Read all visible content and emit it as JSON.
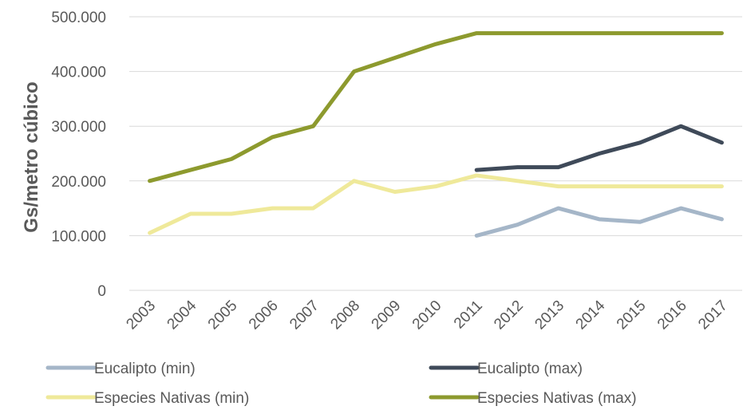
{
  "chart_data": {
    "type": "line",
    "title": "",
    "xlabel": "",
    "ylabel": "Gs/metro cúbico",
    "x": [
      "2003",
      "2004",
      "2005",
      "2006",
      "2007",
      "2008",
      "2009",
      "2010",
      "2011",
      "2012",
      "2013",
      "2014",
      "2015",
      "2016",
      "2017"
    ],
    "ylim": [
      0,
      500000
    ],
    "yticks": [
      0,
      100000,
      200000,
      300000,
      400000,
      500000
    ],
    "ytick_labels": [
      "0",
      "100.000",
      "200.000",
      "300.000",
      "400.000",
      "500.000"
    ],
    "grid": true,
    "legend_position": "bottom",
    "series": [
      {
        "name": "Eucalipto (min)",
        "color": "#a5b6c8",
        "values": [
          null,
          null,
          null,
          null,
          null,
          null,
          null,
          null,
          100000,
          120000,
          150000,
          130000,
          125000,
          150000,
          130000
        ]
      },
      {
        "name": "Eucalipto (max)",
        "color": "#3f4a59",
        "values": [
          null,
          null,
          null,
          null,
          null,
          null,
          null,
          null,
          220000,
          225000,
          225000,
          250000,
          270000,
          300000,
          270000
        ]
      },
      {
        "name": "Especies Nativas (min)",
        "color": "#efe99a",
        "values": [
          105000,
          140000,
          140000,
          150000,
          150000,
          200000,
          180000,
          190000,
          210000,
          200000,
          190000,
          190000,
          190000,
          190000,
          190000
        ]
      },
      {
        "name": "Especies Nativas (max)",
        "color": "#8d9a2e",
        "values": [
          200000,
          220000,
          240000,
          280000,
          300000,
          400000,
          425000,
          450000,
          470000,
          470000,
          470000,
          470000,
          470000,
          470000,
          470000
        ]
      }
    ]
  }
}
